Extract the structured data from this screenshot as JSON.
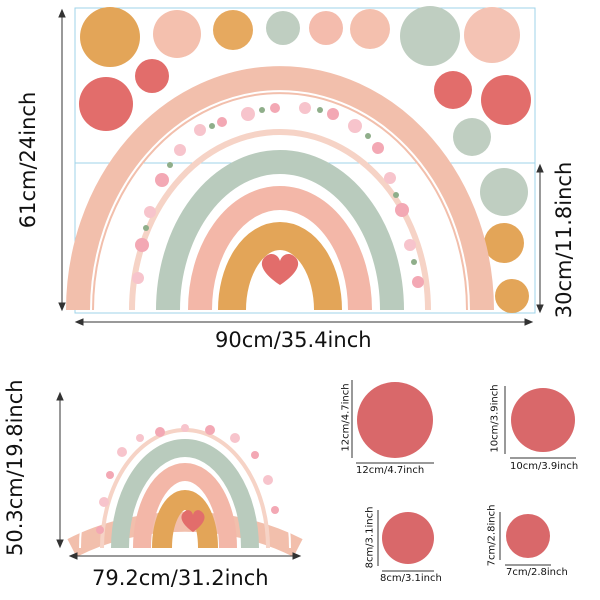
{
  "top_sheet": {
    "height_label": "61cm/24inch",
    "width_label": "90cm/35.4inch",
    "lower_height_label": "30cm/11.8inch"
  },
  "small_rainbow": {
    "height_label": "50.3cm/19.8inch",
    "width_label": "79.2cm/31.2inch"
  },
  "circles": {
    "c12": {
      "h": "12cm/4.7inch",
      "w": "12cm/4.7inch"
    },
    "c10": {
      "h": "10cm/3.9inch",
      "w": "10cm/3.9inch"
    },
    "c8": {
      "h": "8cm/3.1inch",
      "w": "8cm/3.1inch"
    },
    "c7": {
      "h": "7cm/2.8inch",
      "w": "7cm/2.8inch"
    }
  },
  "colors": {
    "peach": "#f2bfac",
    "salmon": "#e26d6b",
    "mustard": "#e3a558",
    "sage": "#b9cbbd",
    "coral_circle": "#d9686a",
    "blush": "#f3b7a8"
  }
}
